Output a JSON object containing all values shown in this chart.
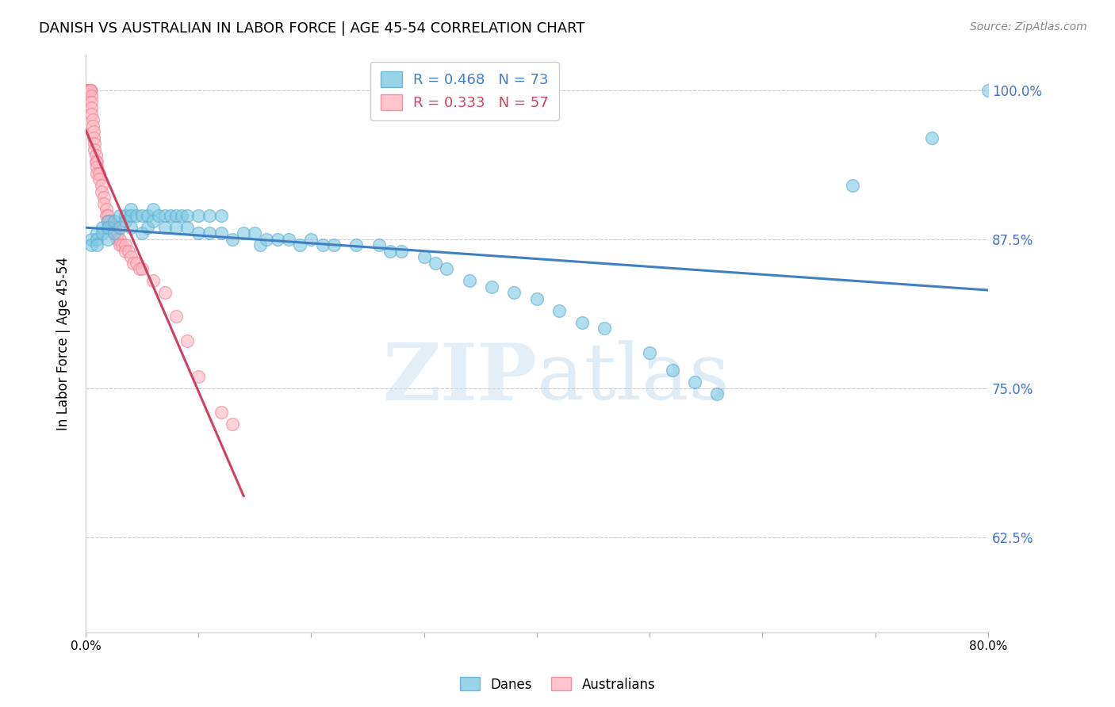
{
  "title": "DANISH VS AUSTRALIAN IN LABOR FORCE | AGE 45-54 CORRELATION CHART",
  "source": "Source: ZipAtlas.com",
  "ylabel": "In Labor Force | Age 45-54",
  "xlim": [
    0.0,
    0.8
  ],
  "ylim": [
    0.545,
    1.03
  ],
  "yticks": [
    0.625,
    0.75,
    0.875,
    1.0
  ],
  "ytick_labels": [
    "62.5%",
    "75.0%",
    "87.5%",
    "100.0%"
  ],
  "xticks": [
    0.0,
    0.1,
    0.2,
    0.3,
    0.4,
    0.5,
    0.6,
    0.7,
    0.8
  ],
  "xtick_labels": [
    "0.0%",
    "",
    "",
    "",
    "",
    "",
    "",
    "",
    "80.0%"
  ],
  "blue_R": 0.468,
  "blue_N": 73,
  "pink_R": 0.333,
  "pink_N": 57,
  "blue_color": "#7ec8e3",
  "pink_color": "#ffb6c1",
  "blue_edge_color": "#5aabcf",
  "pink_edge_color": "#f08090",
  "blue_line_color": "#4080c0",
  "pink_line_color": "#d04060",
  "legend_label_blue": "Danes",
  "legend_label_pink": "Australians",
  "watermark_zip": "ZIP",
  "watermark_atlas": "atlas",
  "axis_tick_color": "#4472c4",
  "blue_scatter_x": [
    0.005,
    0.005,
    0.01,
    0.01,
    0.01,
    0.015,
    0.015,
    0.02,
    0.02,
    0.02,
    0.025,
    0.025,
    0.03,
    0.03,
    0.035,
    0.035,
    0.04,
    0.04,
    0.04,
    0.045,
    0.05,
    0.05,
    0.055,
    0.055,
    0.06,
    0.06,
    0.065,
    0.07,
    0.07,
    0.075,
    0.08,
    0.08,
    0.085,
    0.09,
    0.09,
    0.1,
    0.1,
    0.11,
    0.11,
    0.12,
    0.12,
    0.13,
    0.14,
    0.15,
    0.155,
    0.16,
    0.17,
    0.18,
    0.19,
    0.2,
    0.21,
    0.22,
    0.24,
    0.26,
    0.27,
    0.28,
    0.3,
    0.31,
    0.32,
    0.34,
    0.36,
    0.38,
    0.4,
    0.42,
    0.44,
    0.46,
    0.5,
    0.52,
    0.54,
    0.56,
    0.68,
    0.75,
    0.8
  ],
  "blue_scatter_y": [
    0.875,
    0.87,
    0.88,
    0.875,
    0.87,
    0.885,
    0.88,
    0.89,
    0.885,
    0.875,
    0.89,
    0.88,
    0.895,
    0.885,
    0.895,
    0.89,
    0.9,
    0.895,
    0.885,
    0.895,
    0.895,
    0.88,
    0.895,
    0.885,
    0.9,
    0.89,
    0.895,
    0.895,
    0.885,
    0.895,
    0.895,
    0.885,
    0.895,
    0.895,
    0.885,
    0.895,
    0.88,
    0.895,
    0.88,
    0.895,
    0.88,
    0.875,
    0.88,
    0.88,
    0.87,
    0.875,
    0.875,
    0.875,
    0.87,
    0.875,
    0.87,
    0.87,
    0.87,
    0.87,
    0.865,
    0.865,
    0.86,
    0.855,
    0.85,
    0.84,
    0.835,
    0.83,
    0.825,
    0.815,
    0.805,
    0.8,
    0.78,
    0.765,
    0.755,
    0.745,
    0.92,
    0.96,
    1.0
  ],
  "pink_scatter_x": [
    0.002,
    0.002,
    0.002,
    0.004,
    0.004,
    0.004,
    0.004,
    0.004,
    0.005,
    0.005,
    0.005,
    0.005,
    0.006,
    0.006,
    0.007,
    0.007,
    0.008,
    0.008,
    0.009,
    0.009,
    0.01,
    0.01,
    0.01,
    0.012,
    0.012,
    0.014,
    0.014,
    0.016,
    0.016,
    0.018,
    0.018,
    0.02,
    0.02,
    0.022,
    0.022,
    0.025,
    0.025,
    0.028,
    0.028,
    0.03,
    0.03,
    0.032,
    0.035,
    0.035,
    0.038,
    0.04,
    0.042,
    0.045,
    0.048,
    0.05,
    0.06,
    0.07,
    0.08,
    0.09,
    0.1,
    0.12,
    0.13
  ],
  "pink_scatter_y": [
    1.0,
    1.0,
    1.0,
    1.0,
    1.0,
    1.0,
    1.0,
    1.0,
    0.995,
    0.99,
    0.985,
    0.98,
    0.975,
    0.97,
    0.965,
    0.96,
    0.955,
    0.95,
    0.945,
    0.94,
    0.94,
    0.935,
    0.93,
    0.93,
    0.925,
    0.92,
    0.915,
    0.91,
    0.905,
    0.9,
    0.895,
    0.895,
    0.89,
    0.89,
    0.885,
    0.885,
    0.88,
    0.88,
    0.875,
    0.875,
    0.87,
    0.87,
    0.87,
    0.865,
    0.865,
    0.86,
    0.855,
    0.855,
    0.85,
    0.85,
    0.84,
    0.83,
    0.81,
    0.79,
    0.76,
    0.73,
    0.72
  ]
}
